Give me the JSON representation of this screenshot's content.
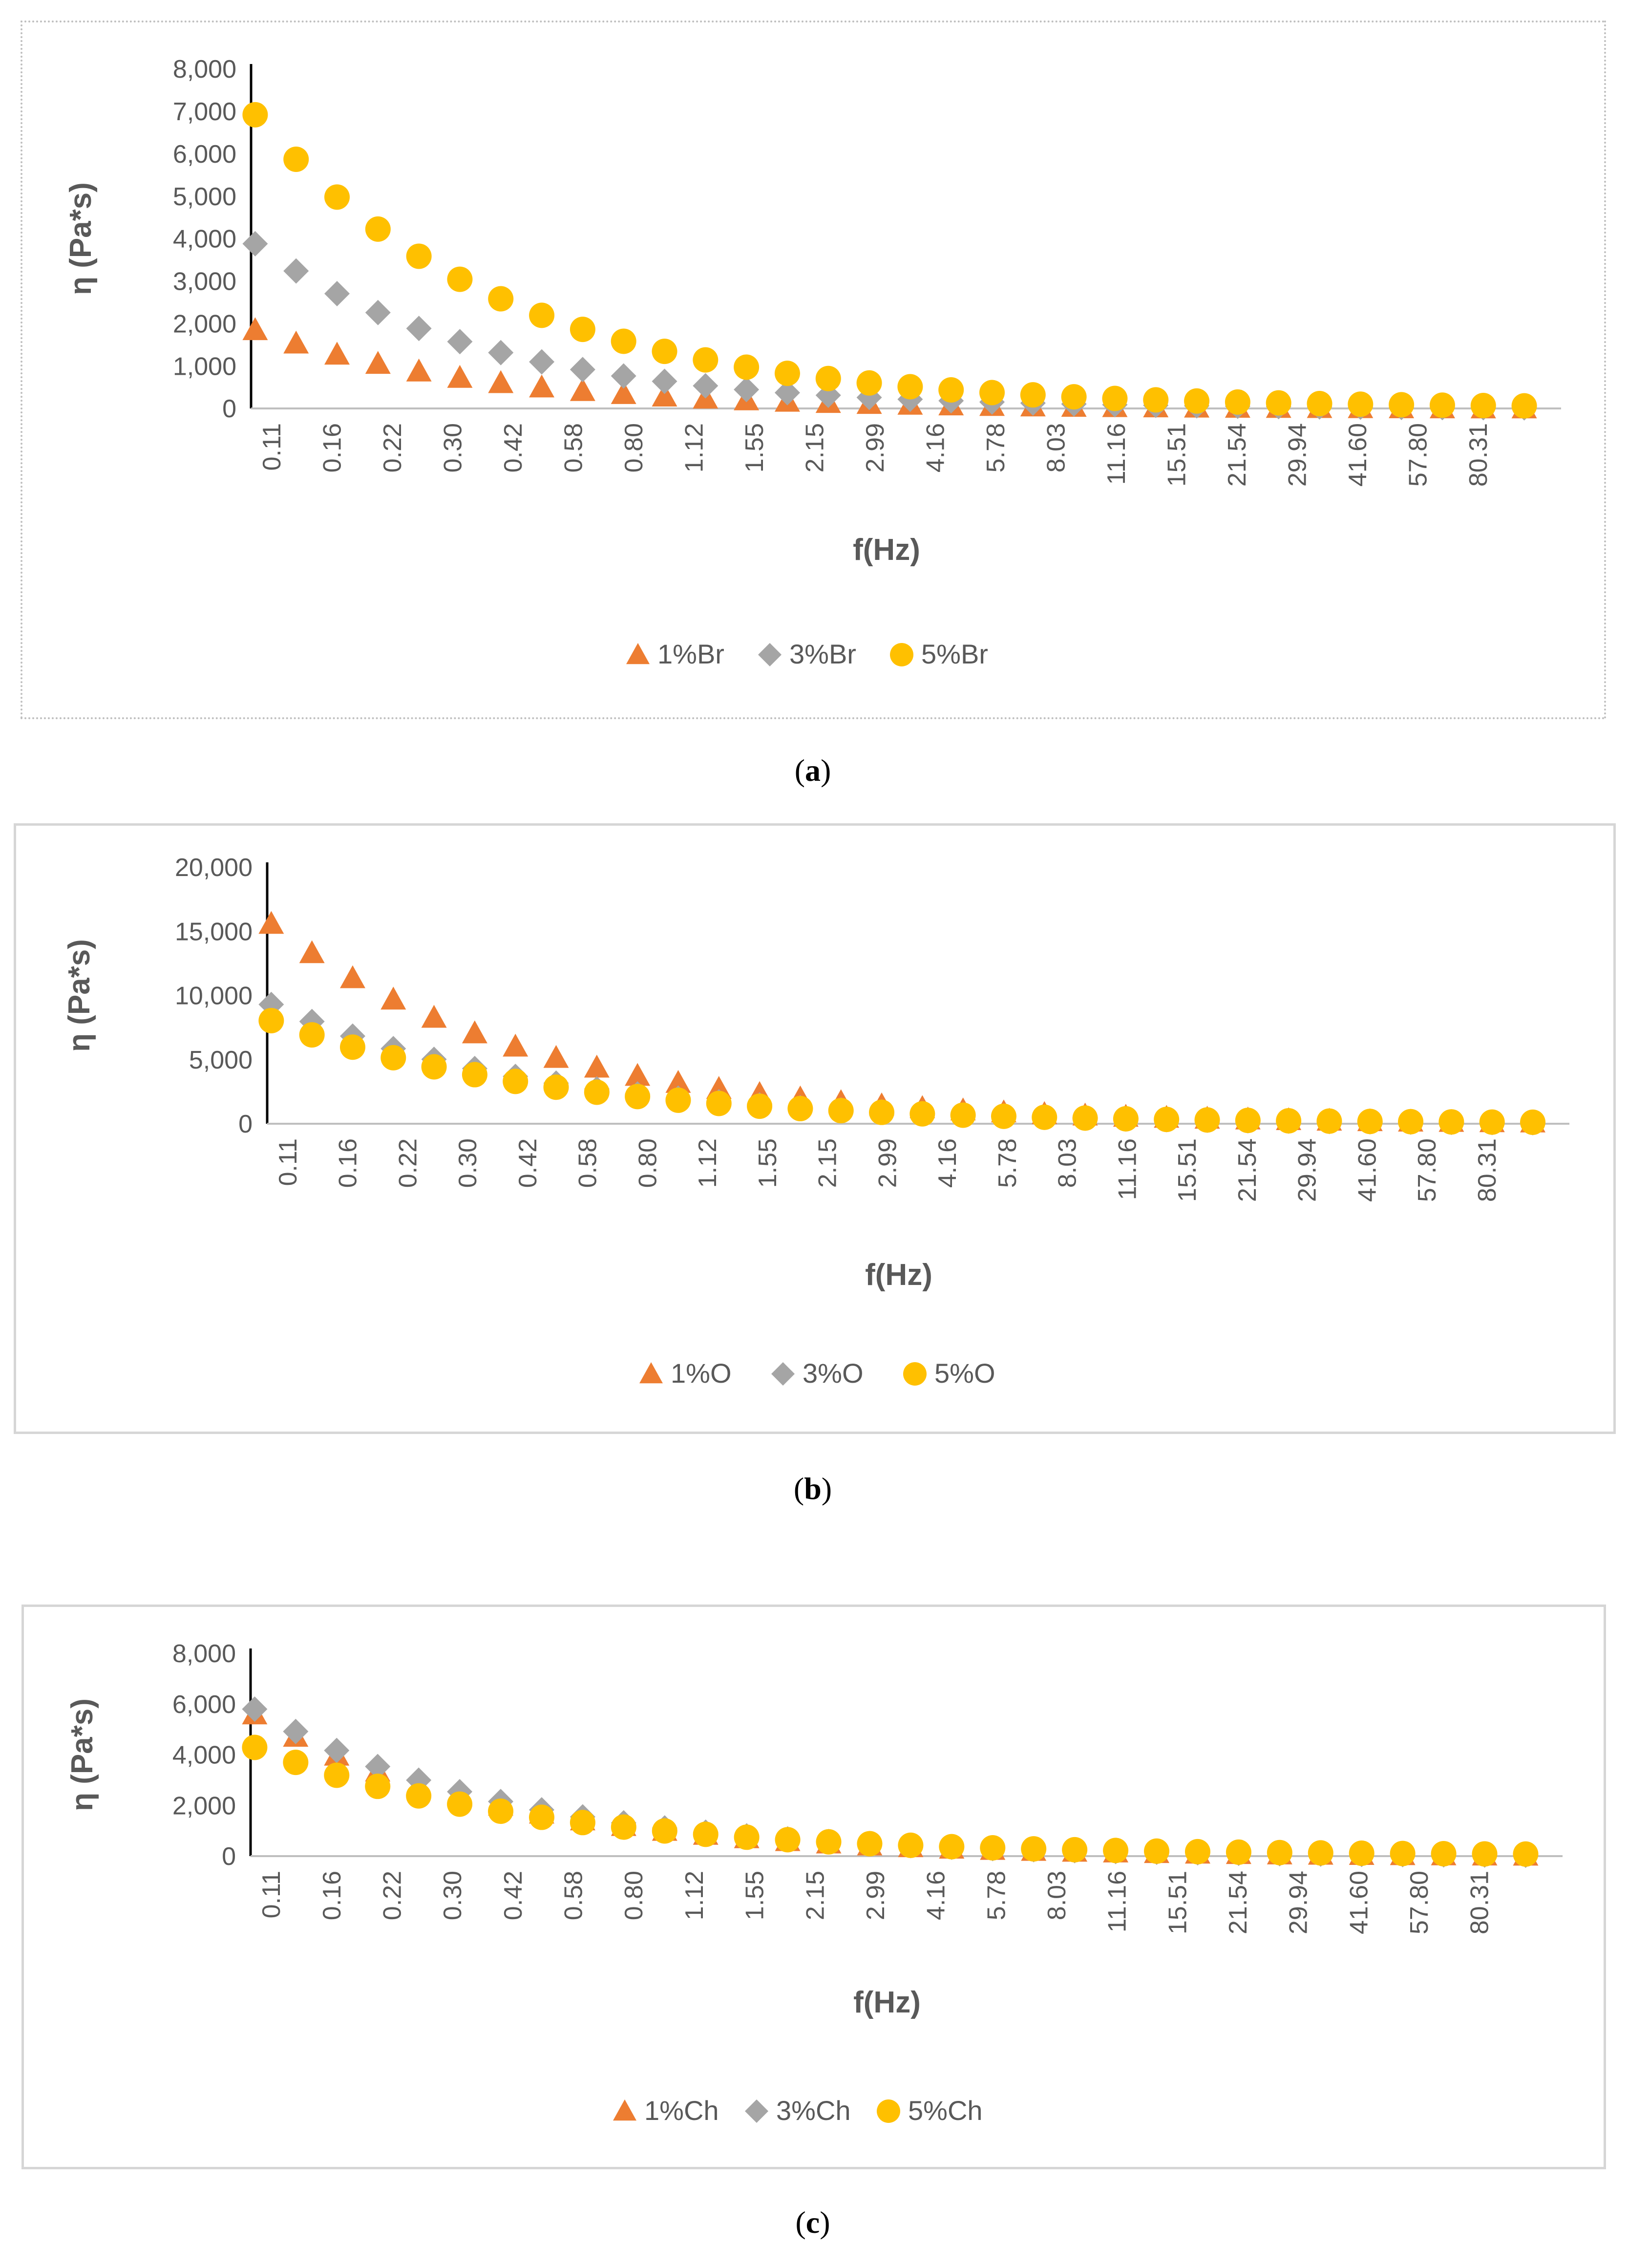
{
  "colors": {
    "s1": "#ED7D31",
    "s2": "#A5A5A5",
    "s3": "#FFC000",
    "axis": "#000000",
    "text": "#595959"
  },
  "captions": {
    "a": "a",
    "b": "b",
    "c": "c"
  },
  "chart_data": [
    {
      "id": "a",
      "type": "scatter",
      "title": "",
      "xlabel": "f(Hz)",
      "ylabel": "η (Pa*s)",
      "ylim": [
        0,
        8000
      ],
      "yticks": [
        0,
        1000,
        2000,
        3000,
        4000,
        5000,
        6000,
        7000,
        8000
      ],
      "ytick_labels": [
        "0",
        "1,000",
        "2,000",
        "3,000",
        "4,000",
        "5,000",
        "6,000",
        "7,000",
        "8,000"
      ],
      "x_tick_labels": [
        "0.11",
        "0.16",
        "0.22",
        "0.30",
        "0.42",
        "0.58",
        "0.80",
        "1.12",
        "1.55",
        "2.15",
        "2.99",
        "4.16",
        "5.78",
        "8.03",
        "11.16",
        "15.51",
        "21.54",
        "29.94",
        "41.60",
        "57.80",
        "80.31"
      ],
      "n_points": 32,
      "legend_position": "bottom",
      "series": [
        {
          "name": "1%Br",
          "marker": "triangle",
          "color": "#ED7D31",
          "start": 1850,
          "decay": 0.085
        },
        {
          "name": "3%Br",
          "marker": "diamond",
          "color": "#A5A5A5",
          "start": 3880,
          "decay": 0.082
        },
        {
          "name": "5%Br",
          "marker": "circle",
          "color": "#FFC000",
          "start": 6900,
          "decay": 0.075
        }
      ]
    },
    {
      "id": "b",
      "type": "scatter",
      "title": "",
      "xlabel": "f(Hz)",
      "ylabel": "η (Pa*s)",
      "ylim": [
        0,
        20000
      ],
      "yticks": [
        0,
        5000,
        10000,
        15000,
        20000
      ],
      "ytick_labels": [
        "0",
        "5,000",
        "10,000",
        "15,000",
        "20,000"
      ],
      "x_tick_labels": [
        "0.11",
        "0.16",
        "0.22",
        "0.30",
        "0.42",
        "0.58",
        "0.80",
        "1.12",
        "1.55",
        "2.15",
        "2.99",
        "4.16",
        "5.78",
        "8.03",
        "11.16",
        "15.51",
        "21.54",
        "29.94",
        "41.60",
        "57.80",
        "80.31"
      ],
      "n_points": 32,
      "legend_position": "bottom",
      "series": [
        {
          "name": "1%O",
          "marker": "triangle",
          "color": "#ED7D31",
          "start": 15600,
          "decay": 0.072
        },
        {
          "name": "3%O",
          "marker": "diamond",
          "color": "#A5A5A5",
          "start": 9300,
          "decay": 0.07
        },
        {
          "name": "5%O",
          "marker": "circle",
          "color": "#FFC000",
          "start": 8000,
          "decay": 0.068
        }
      ]
    },
    {
      "id": "c",
      "type": "scatter",
      "title": "",
      "xlabel": "f(Hz)",
      "ylabel": "η (Pa*s)",
      "ylim": [
        0,
        8000
      ],
      "yticks": [
        0,
        2000,
        4000,
        6000,
        8000
      ],
      "ytick_labels": [
        "0",
        "2,000",
        "4,000",
        "6,000",
        "8,000"
      ],
      "x_tick_labels": [
        "0.11",
        "0.16",
        "0.22",
        "0.30",
        "0.42",
        "0.58",
        "0.80",
        "1.12",
        "1.55",
        "2.15",
        "2.99",
        "4.16",
        "5.78",
        "8.03",
        "11.16",
        "15.51",
        "21.54",
        "29.94",
        "41.60",
        "57.80",
        "80.31"
      ],
      "n_points": 32,
      "legend_position": "bottom",
      "series": [
        {
          "name": "1%Ch",
          "marker": "triangle",
          "color": "#ED7D31",
          "start": 5600,
          "decay": 0.078
        },
        {
          "name": "3%Ch",
          "marker": "diamond",
          "color": "#A5A5A5",
          "start": 5800,
          "decay": 0.075
        },
        {
          "name": "5%Ch",
          "marker": "circle",
          "color": "#FFC000",
          "start": 4250,
          "decay": 0.068
        }
      ]
    }
  ]
}
